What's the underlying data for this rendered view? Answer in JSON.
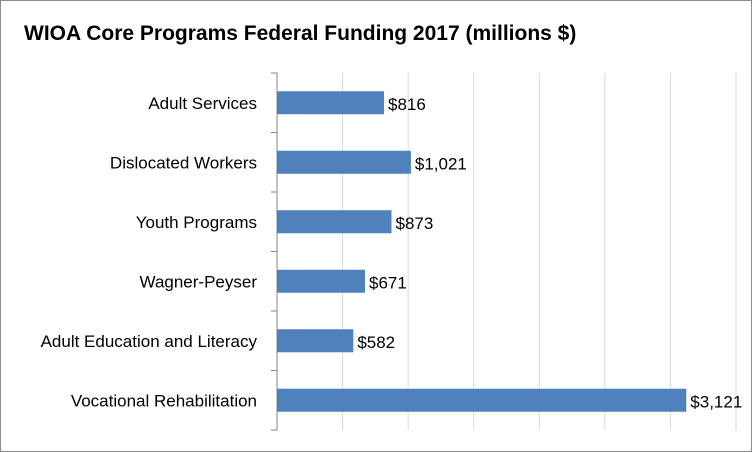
{
  "chart_data": {
    "type": "bar",
    "orientation": "horizontal",
    "title": "WIOA Core Programs Federal Funding 2017 (millions $)",
    "categories": [
      "Adult Services",
      "Dislocated Workers",
      "Youth Programs",
      "Wagner-Peyser",
      "Adult Education and Literacy",
      "Vocational Rehabilitation"
    ],
    "values": [
      816,
      1021,
      873,
      671,
      582,
      3121
    ],
    "value_labels": [
      "$816",
      "$1,021",
      "$873",
      "$671",
      "$582",
      "$3,121"
    ],
    "xlim": [
      0,
      3500
    ],
    "grid": true,
    "bar_color": "#4f81bd",
    "grid_color": "#d9d9d9",
    "axis_color": "#868686"
  }
}
